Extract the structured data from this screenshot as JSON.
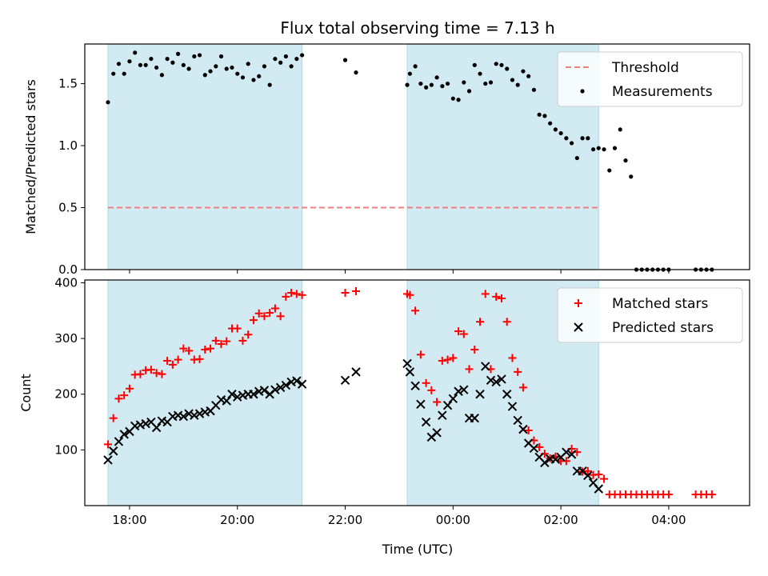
{
  "title": "Flux total observing time = 7.13 h",
  "colors": {
    "shade": "#add8e6",
    "threshold": "#f08080",
    "measurement": "#000000",
    "matched": "#ff0000",
    "predicted": "#000000"
  },
  "chart_data": [
    {
      "type": "scatter",
      "panel": "top",
      "xlabel": "",
      "ylabel": "Matched/Predicted stars",
      "xlim_hours": [
        17.17,
        29.5
      ],
      "ylim": [
        0,
        1.82
      ],
      "yticks": [
        0.0,
        0.5,
        1.0,
        1.5
      ],
      "ytick_labels": [
        "0.0",
        "0.5",
        "1.0",
        "1.5"
      ],
      "legend": {
        "placement": "top-right",
        "entries": [
          "Threshold",
          "Measurements"
        ]
      },
      "shaded_intervals_hours": [
        [
          17.6,
          21.2
        ],
        [
          23.15,
          26.7
        ]
      ],
      "threshold": {
        "name": "Threshold",
        "y": 0.5,
        "x_hours": [
          17.6,
          26.7
        ]
      },
      "series": [
        {
          "name": "Measurements",
          "x_hours": [
            17.6,
            17.7,
            17.8,
            17.9,
            18.0,
            18.1,
            18.2,
            18.3,
            18.4,
            18.5,
            18.6,
            18.7,
            18.8,
            18.9,
            19.0,
            19.1,
            19.2,
            19.3,
            19.4,
            19.5,
            19.6,
            19.7,
            19.8,
            19.9,
            20.0,
            20.1,
            20.2,
            20.3,
            20.4,
            20.5,
            20.6,
            20.7,
            20.8,
            20.9,
            21.0,
            21.1,
            21.2,
            22.0,
            22.2,
            23.15,
            23.2,
            23.3,
            23.4,
            23.5,
            23.6,
            23.7,
            23.8,
            23.9,
            24.0,
            24.1,
            24.2,
            24.3,
            24.4,
            24.5,
            24.6,
            24.7,
            24.8,
            24.9,
            25.0,
            25.1,
            25.2,
            25.3,
            25.4,
            25.5,
            25.6,
            25.7,
            25.8,
            25.9,
            26.0,
            26.1,
            26.2,
            26.3,
            26.4,
            26.5,
            26.6,
            26.7,
            26.8,
            26.9,
            27.0,
            27.1,
            27.2,
            27.3,
            27.4,
            27.5,
            27.6,
            27.7,
            27.8,
            27.9,
            28.0,
            28.5,
            28.6,
            28.7,
            28.8
          ],
          "y": [
            1.35,
            1.58,
            1.66,
            1.58,
            1.68,
            1.75,
            1.65,
            1.65,
            1.7,
            1.63,
            1.57,
            1.7,
            1.67,
            1.74,
            1.65,
            1.62,
            1.72,
            1.73,
            1.57,
            1.6,
            1.64,
            1.72,
            1.62,
            1.63,
            1.58,
            1.55,
            1.66,
            1.53,
            1.56,
            1.64,
            1.49,
            1.7,
            1.67,
            1.72,
            1.64,
            1.7,
            1.73,
            1.69,
            1.59,
            1.49,
            1.58,
            1.64,
            1.5,
            1.47,
            1.49,
            1.55,
            1.48,
            1.5,
            1.38,
            1.37,
            1.51,
            1.44,
            1.65,
            1.58,
            1.5,
            1.51,
            1.66,
            1.65,
            1.62,
            1.53,
            1.49,
            1.6,
            1.56,
            1.45,
            1.25,
            1.24,
            1.18,
            1.13,
            1.1,
            1.06,
            1.02,
            0.9,
            1.06,
            1.06,
            0.97,
            0.98,
            0.97,
            0.8,
            0.98,
            1.13,
            0.88,
            0.75,
            0.0,
            0.0,
            0.0,
            0.0,
            0.0,
            0.0,
            0.0,
            0.0,
            0.0,
            0.0,
            0.0
          ]
        }
      ]
    },
    {
      "type": "scatter",
      "panel": "bottom",
      "xlabel": "Time (UTC)",
      "ylabel": "Count",
      "xlim_hours": [
        17.17,
        29.5
      ],
      "ylim": [
        0,
        405
      ],
      "yticks": [
        100,
        200,
        300,
        400
      ],
      "ytick_labels": [
        "100",
        "200",
        "300",
        "400"
      ],
      "xticks_hours": [
        18,
        20,
        22,
        24,
        26,
        28
      ],
      "xtick_labels": [
        "18:00",
        "20:00",
        "22:00",
        "00:00",
        "02:00",
        "04:00"
      ],
      "legend": {
        "placement": "top-right",
        "entries": [
          "Matched stars",
          "Predicted stars"
        ]
      },
      "shaded_intervals_hours": [
        [
          17.6,
          21.2
        ],
        [
          23.15,
          26.7
        ]
      ],
      "series": [
        {
          "name": "Matched stars",
          "marker": "plus",
          "x_hours": [
            17.6,
            17.7,
            17.8,
            17.9,
            18.0,
            18.1,
            18.2,
            18.3,
            18.4,
            18.5,
            18.6,
            18.7,
            18.8,
            18.9,
            19.0,
            19.1,
            19.2,
            19.3,
            19.4,
            19.5,
            19.6,
            19.7,
            19.8,
            19.9,
            20.0,
            20.1,
            20.2,
            20.3,
            20.4,
            20.5,
            20.6,
            20.7,
            20.8,
            20.9,
            21.0,
            21.1,
            21.2,
            22.0,
            22.2,
            23.15,
            23.2,
            23.3,
            23.4,
            23.5,
            23.6,
            23.7,
            23.8,
            23.9,
            24.0,
            24.1,
            24.2,
            24.3,
            24.4,
            24.5,
            24.6,
            24.7,
            24.8,
            24.9,
            25.0,
            25.1,
            25.2,
            25.3,
            25.4,
            25.5,
            25.6,
            25.7,
            25.8,
            25.9,
            26.0,
            26.1,
            26.2,
            26.3,
            26.4,
            26.5,
            26.6,
            26.7,
            26.8,
            26.9,
            27.0,
            27.1,
            27.2,
            27.3,
            27.4,
            27.5,
            27.6,
            27.7,
            27.8,
            27.9,
            28.0,
            28.5,
            28.6,
            28.7,
            28.8
          ],
          "y": [
            110,
            157,
            192,
            198,
            210,
            235,
            236,
            243,
            244,
            238,
            236,
            260,
            253,
            262,
            282,
            278,
            262,
            263,
            280,
            282,
            296,
            290,
            295,
            318,
            318,
            296,
            307,
            333,
            345,
            340,
            346,
            354,
            340,
            375,
            382,
            380,
            378,
            382,
            385,
            380,
            378,
            350,
            271,
            220,
            207,
            186,
            260,
            262,
            265,
            313,
            308,
            245,
            280,
            330,
            380,
            245,
            375,
            372,
            330,
            265,
            240,
            212,
            135,
            117,
            105,
            93,
            85,
            88,
            80,
            80,
            102,
            96,
            61,
            62,
            55,
            56,
            48,
            20,
            20,
            20,
            20,
            20,
            20,
            20,
            20,
            20,
            20,
            20,
            20,
            20,
            20,
            20,
            20
          ]
        },
        {
          "name": "Predicted stars",
          "marker": "x",
          "x_hours": [
            17.6,
            17.7,
            17.8,
            17.9,
            18.0,
            18.1,
            18.2,
            18.3,
            18.4,
            18.5,
            18.6,
            18.7,
            18.8,
            18.9,
            19.0,
            19.1,
            19.2,
            19.3,
            19.4,
            19.5,
            19.6,
            19.7,
            19.8,
            19.9,
            20.0,
            20.1,
            20.2,
            20.3,
            20.4,
            20.5,
            20.6,
            20.7,
            20.8,
            20.9,
            21.0,
            21.1,
            21.2,
            22.0,
            22.2,
            23.15,
            23.2,
            23.3,
            23.4,
            23.5,
            23.6,
            23.7,
            23.8,
            23.9,
            24.0,
            24.1,
            24.2,
            24.3,
            24.4,
            24.5,
            24.6,
            24.7,
            24.8,
            24.9,
            25.0,
            25.1,
            25.2,
            25.3,
            25.4,
            25.5,
            25.6,
            25.7,
            25.8,
            25.9,
            26.0,
            26.1,
            26.2,
            26.3,
            26.4,
            26.5,
            26.6,
            26.7
          ],
          "y": [
            82,
            98,
            115,
            128,
            133,
            143,
            145,
            147,
            150,
            140,
            152,
            150,
            160,
            162,
            160,
            165,
            162,
            165,
            168,
            170,
            180,
            190,
            188,
            200,
            195,
            198,
            200,
            200,
            205,
            207,
            200,
            208,
            212,
            216,
            222,
            224,
            218,
            225,
            240,
            255,
            240,
            215,
            182,
            150,
            123,
            131,
            162,
            180,
            192,
            205,
            208,
            157,
            157,
            200,
            250,
            225,
            222,
            227,
            200,
            178,
            153,
            137,
            112,
            103,
            87,
            77,
            84,
            83,
            87,
            96,
            92,
            62,
            62,
            54,
            41,
            30
          ]
        }
      ]
    }
  ]
}
